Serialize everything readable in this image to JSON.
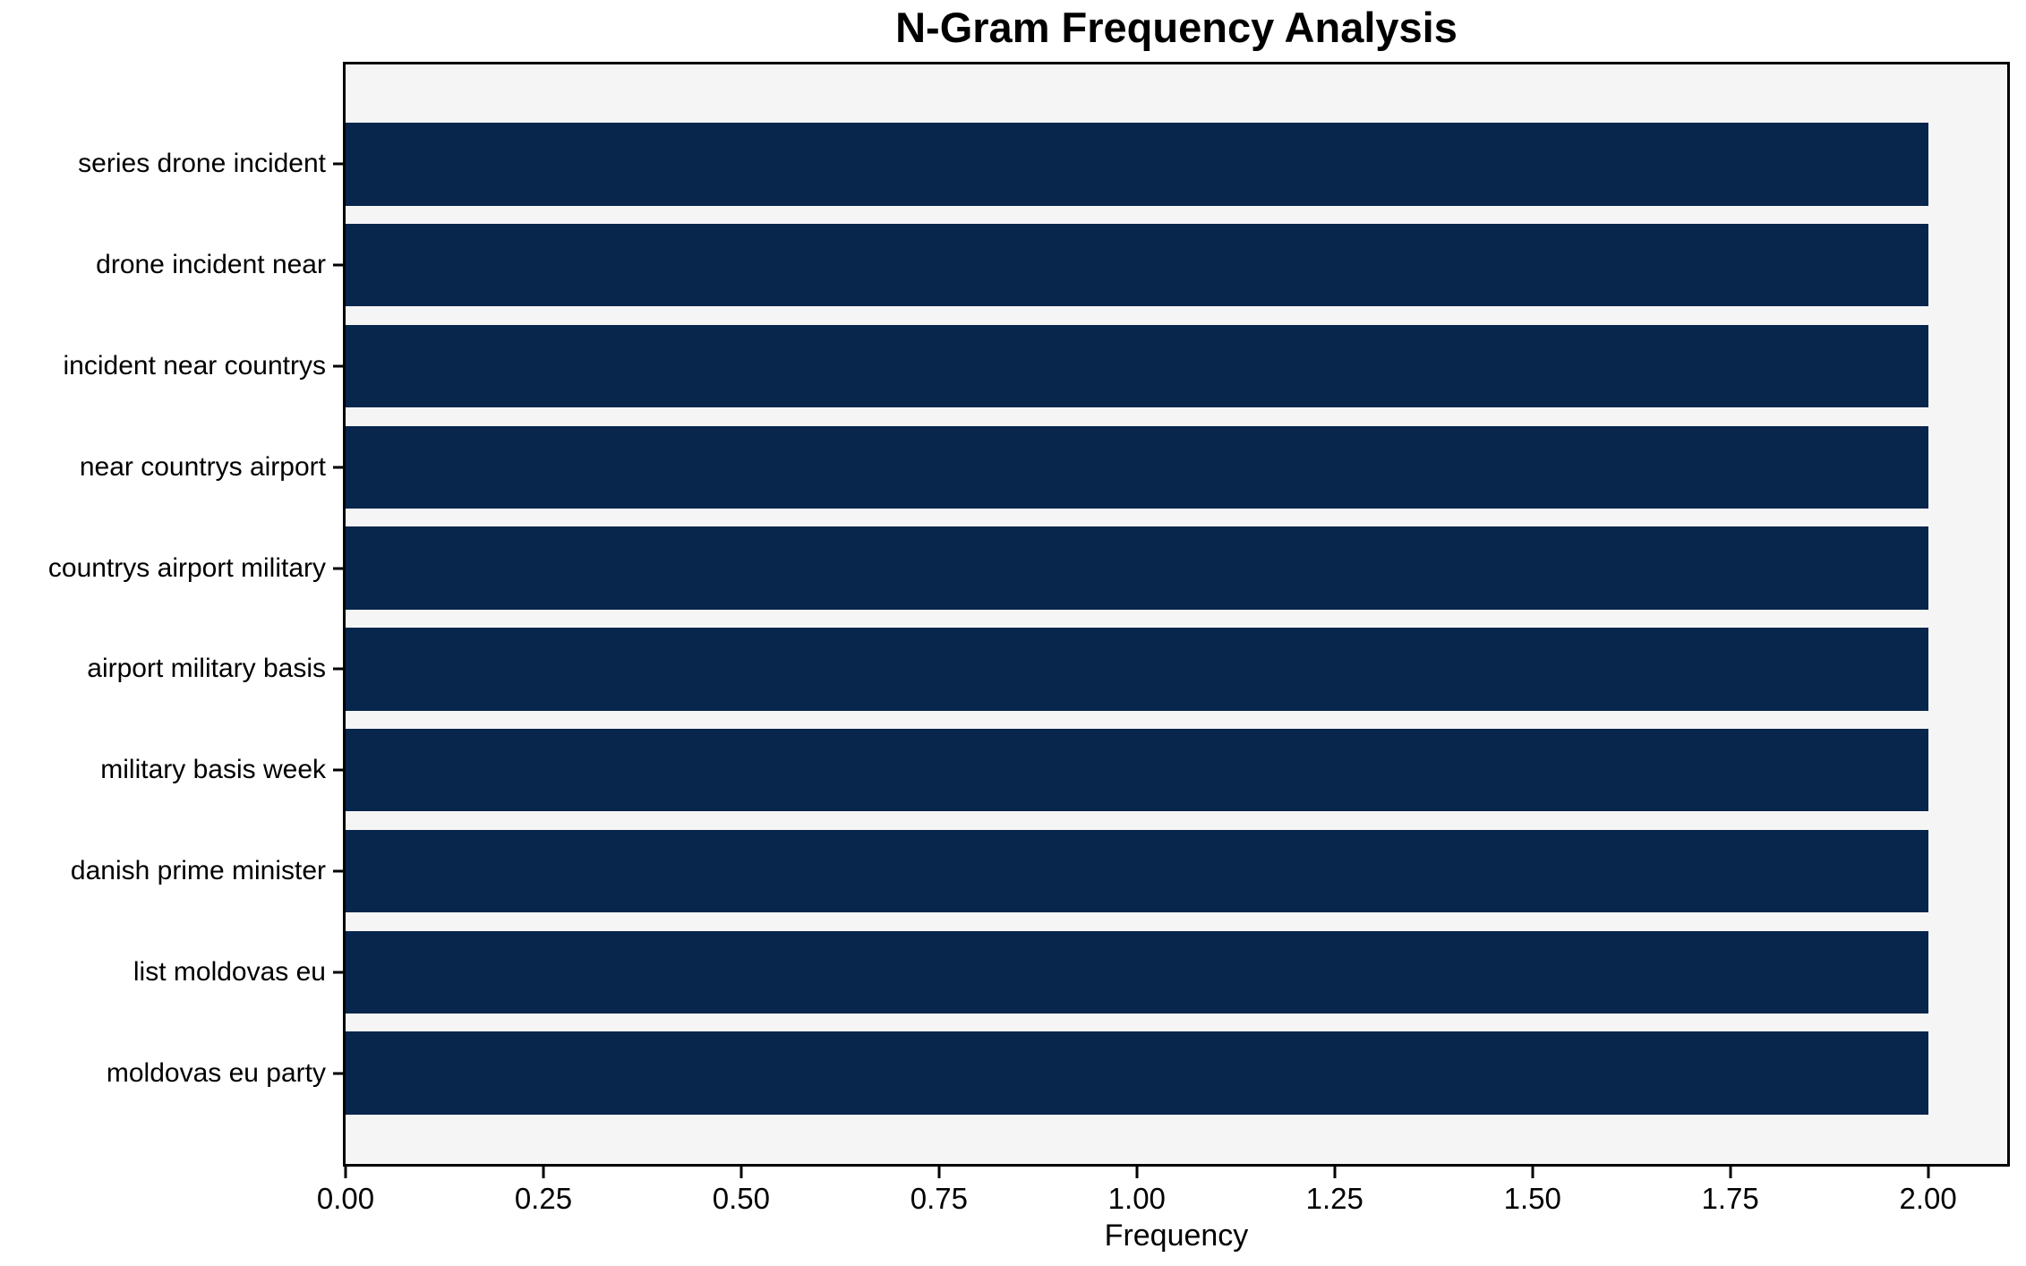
{
  "chart_data": {
    "type": "bar",
    "orientation": "horizontal",
    "title": "N-Gram Frequency Analysis",
    "xlabel": "Frequency",
    "categories": [
      "series drone incident",
      "drone incident near",
      "incident near countrys",
      "near countrys airport",
      "countrys airport military",
      "airport military basis",
      "military basis week",
      "danish prime minister",
      "list moldovas eu",
      "moldovas eu party"
    ],
    "values": [
      2,
      2,
      2,
      2,
      2,
      2,
      2,
      2,
      2,
      2
    ],
    "xlim": [
      0,
      2.1
    ],
    "xticks": {
      "values": [
        0,
        0.25,
        0.5,
        0.75,
        1.0,
        1.25,
        1.5,
        1.75,
        2.0
      ],
      "labels": [
        "0.00",
        "0.25",
        "0.50",
        "0.75",
        "1.00",
        "1.25",
        "1.50",
        "1.75",
        "2.00"
      ]
    },
    "grid": false,
    "legend": null,
    "colors": {
      "bar": "#08264c",
      "plot_background": "#f5f5f5",
      "figure_background": "#ffffff",
      "spine": "#000000",
      "text": "#000000"
    }
  }
}
